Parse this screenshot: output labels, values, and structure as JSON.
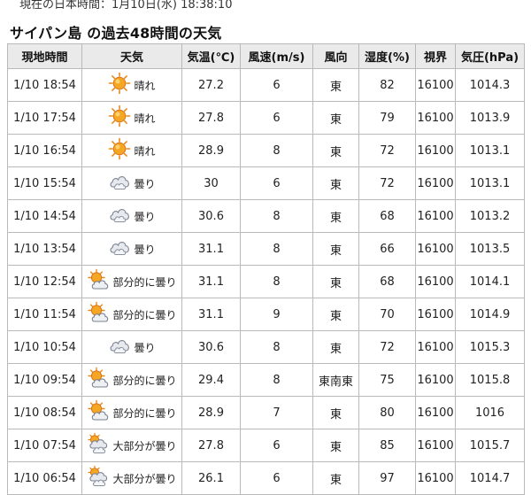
{
  "header": {
    "current_time": "現在の日本時間：1月10日(水) 18:38:10",
    "title": "サイパン島 の過去48時間の天気"
  },
  "table": {
    "columns": [
      "現地時間",
      "天気",
      "気温(℃)",
      "風速(m/s)",
      "風向",
      "湿度(%)",
      "視界",
      "気圧(hPa)"
    ],
    "rows": [
      {
        "time": "1/10 18:54",
        "icon": "sun-icon",
        "weather": "晴れ",
        "temp": "27.2",
        "wind_speed": "6",
        "wind_dir": "東",
        "humidity": "82",
        "visibility": "16100",
        "pressure": "1014.3"
      },
      {
        "time": "1/10 17:54",
        "icon": "sun-icon",
        "weather": "晴れ",
        "temp": "27.8",
        "wind_speed": "6",
        "wind_dir": "東",
        "humidity": "79",
        "visibility": "16100",
        "pressure": "1013.9"
      },
      {
        "time": "1/10 16:54",
        "icon": "sun-icon",
        "weather": "晴れ",
        "temp": "28.9",
        "wind_speed": "8",
        "wind_dir": "東",
        "humidity": "72",
        "visibility": "16100",
        "pressure": "1013.1"
      },
      {
        "time": "1/10 15:54",
        "icon": "cloud-icon",
        "weather": "曇り",
        "temp": "30",
        "wind_speed": "6",
        "wind_dir": "東",
        "humidity": "72",
        "visibility": "16100",
        "pressure": "1013.1"
      },
      {
        "time": "1/10 14:54",
        "icon": "cloud-icon",
        "weather": "曇り",
        "temp": "30.6",
        "wind_speed": "8",
        "wind_dir": "東",
        "humidity": "68",
        "visibility": "16100",
        "pressure": "1013.2"
      },
      {
        "time": "1/10 13:54",
        "icon": "cloud-icon",
        "weather": "曇り",
        "temp": "31.1",
        "wind_speed": "8",
        "wind_dir": "東",
        "humidity": "66",
        "visibility": "16100",
        "pressure": "1013.5"
      },
      {
        "time": "1/10 12:54",
        "icon": "partly-cloudy-icon",
        "weather": "部分的に曇り",
        "temp": "31.1",
        "wind_speed": "8",
        "wind_dir": "東",
        "humidity": "68",
        "visibility": "16100",
        "pressure": "1014.1"
      },
      {
        "time": "1/10 11:54",
        "icon": "partly-cloudy-icon",
        "weather": "部分的に曇り",
        "temp": "31.1",
        "wind_speed": "9",
        "wind_dir": "東",
        "humidity": "70",
        "visibility": "16100",
        "pressure": "1014.9"
      },
      {
        "time": "1/10 10:54",
        "icon": "cloud-icon",
        "weather": "曇り",
        "temp": "30.6",
        "wind_speed": "8",
        "wind_dir": "東",
        "humidity": "72",
        "visibility": "16100",
        "pressure": "1015.3"
      },
      {
        "time": "1/10 09:54",
        "icon": "partly-cloudy-icon",
        "weather": "部分的に曇り",
        "temp": "29.4",
        "wind_speed": "8",
        "wind_dir": "東南東",
        "humidity": "75",
        "visibility": "16100",
        "pressure": "1015.8"
      },
      {
        "time": "1/10 08:54",
        "icon": "partly-cloudy-icon",
        "weather": "部分的に曇り",
        "temp": "28.9",
        "wind_speed": "7",
        "wind_dir": "東",
        "humidity": "80",
        "visibility": "16100",
        "pressure": "1016"
      },
      {
        "time": "1/10 07:54",
        "icon": "mostly-cloudy-icon",
        "weather": "大部分が曇り",
        "temp": "27.8",
        "wind_speed": "6",
        "wind_dir": "東",
        "humidity": "85",
        "visibility": "16100",
        "pressure": "1015.7"
      },
      {
        "time": "1/10 06:54",
        "icon": "mostly-cloudy-icon",
        "weather": "大部分が曇り",
        "temp": "26.1",
        "wind_speed": "6",
        "wind_dir": "東",
        "humidity": "97",
        "visibility": "16100",
        "pressure": "1014.7"
      }
    ]
  },
  "colors": {
    "header_bg": "#eaeaea",
    "border": "#b9b9b9",
    "sun": "#f5a623",
    "cloud": "#e6e9ee"
  }
}
